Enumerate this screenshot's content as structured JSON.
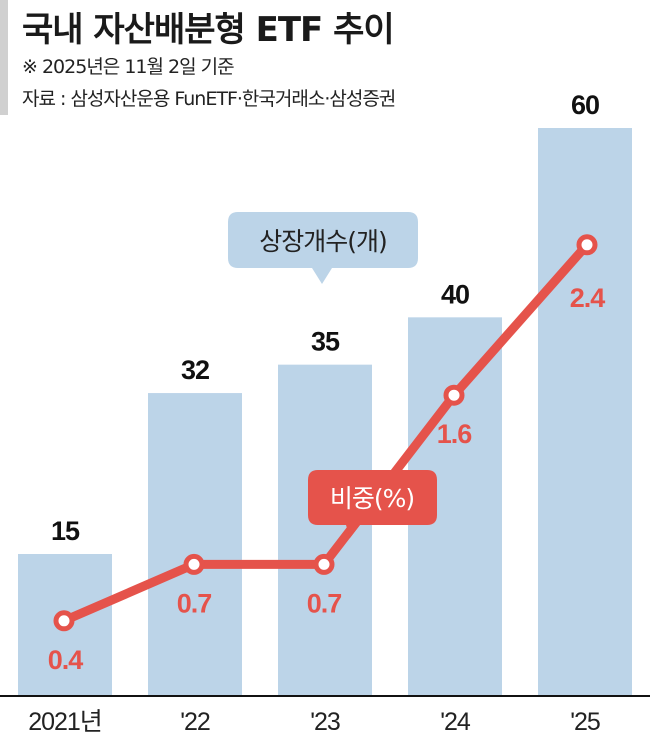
{
  "chart_data": {
    "type": "bar+line",
    "title": "국내 자산배분형 ETF 추이",
    "subtitle": "※ 2025년은 11월 2일 기준",
    "source": "자료 : 삼성자산운용 FunETF·한국거래소·삼성증권",
    "categories": [
      "2021년",
      "'22",
      "'23",
      "'24",
      "'25"
    ],
    "series": [
      {
        "name": "상장개수(개)",
        "type": "bar",
        "color": "#bcd4e8",
        "values": [
          15,
          32,
          35,
          40,
          60
        ],
        "labels": [
          "15",
          "32",
          "35",
          "40",
          "60"
        ]
      },
      {
        "name": "비중(%)",
        "type": "line",
        "color": "#e5534b",
        "values": [
          0.4,
          0.7,
          0.7,
          1.6,
          2.4
        ],
        "labels": [
          "0.4",
          "0.7",
          "0.7",
          "1.6",
          "2.4"
        ]
      }
    ],
    "grid": false
  }
}
